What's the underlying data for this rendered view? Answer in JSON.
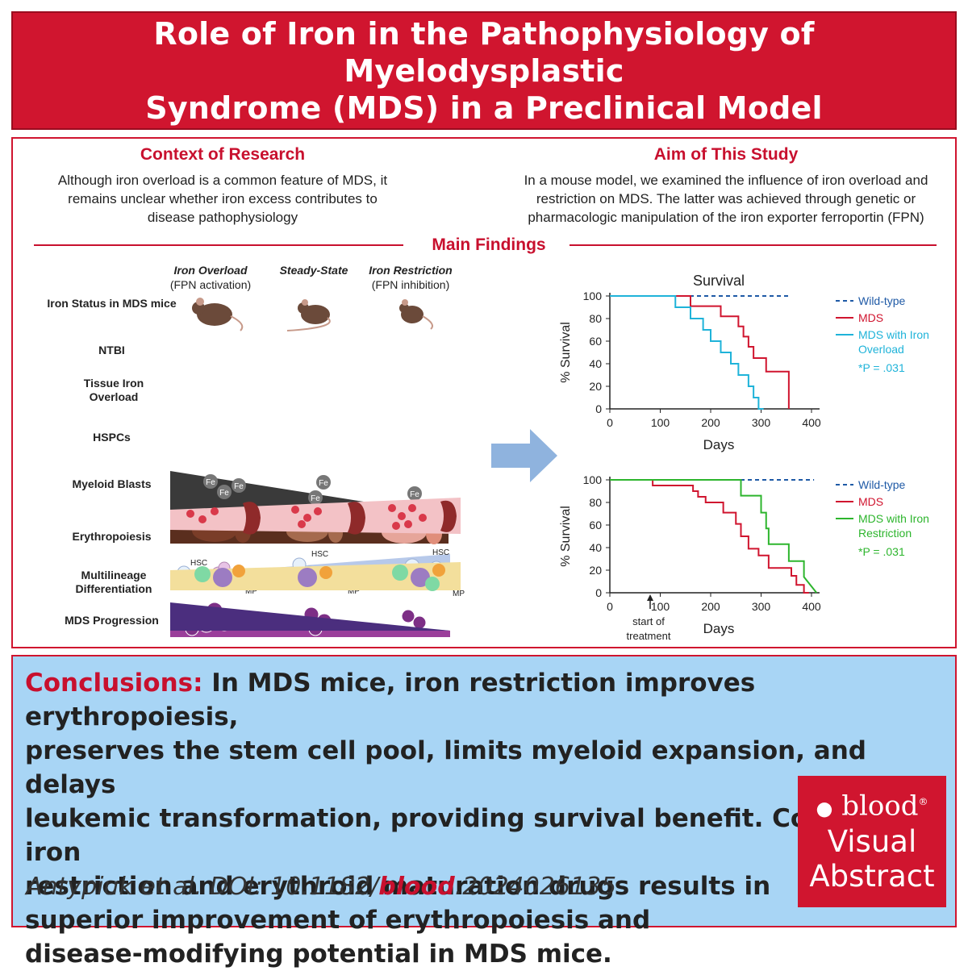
{
  "title": {
    "line1": "Role of Iron in the Pathophysiology of Myelodysplastic",
    "line2": "Syndrome (MDS) in a Preclinical Model"
  },
  "context": {
    "heading": "Context of Research",
    "lines": [
      "Although iron overload is a common feature of MDS, it",
      "remains unclear whether iron excess contributes to",
      "disease pathophysiology"
    ]
  },
  "aim": {
    "heading": "Aim of This Study",
    "lines": [
      "In a mouse model, we examined the influence of iron overload and",
      "restriction on MDS. The latter was achieved through genetic or",
      "pharmacologic manipulation of the iron exporter ferroportin (FPN)"
    ]
  },
  "main_findings": {
    "heading": "Main Findings",
    "columns": [
      {
        "title": "Iron Overload",
        "subtitle": "(FPN activation)"
      },
      {
        "title": "Steady-State",
        "subtitle": ""
      },
      {
        "title": "Iron Restriction",
        "subtitle": "(FPN inhibition)"
      }
    ],
    "rows": [
      "Iron Status in MDS mice",
      "NTBI",
      "Tissue Iron Overload",
      "HSPCs",
      "Myeloid Blasts",
      "Erythropoiesis",
      "Multilineage Differentiation",
      "MDS Progression"
    ],
    "fe_label": "Fe",
    "hsc_label": "HSC",
    "mp_label": "MP",
    "colors": {
      "ntbi": "#3a3a3a",
      "tissue": "#5a2e1e",
      "hspc": "#b7c9ea",
      "blasts": "#9a3e9a",
      "erythro": "#f3c2c6",
      "multi": "#f3df9c",
      "progression": "#4b2e7e",
      "arrow": "#8fb3de"
    }
  },
  "chart_data": [
    {
      "type": "line",
      "title": "Survival",
      "xlabel": "Days",
      "ylabel": "% Survival",
      "xlim": [
        0,
        400
      ],
      "ylim": [
        0,
        100
      ],
      "xticks": [
        0,
        100,
        200,
        300,
        400
      ],
      "yticks": [
        0,
        20,
        40,
        60,
        80,
        100
      ],
      "series": [
        {
          "name": "Wild-type",
          "color": "#1f5aa6",
          "dashed": true,
          "x": [
            0,
            355
          ],
          "y": [
            100,
            100
          ]
        },
        {
          "name": "MDS",
          "color": "#d0152f",
          "step": true,
          "x": [
            0,
            160,
            160,
            220,
            220,
            255,
            255,
            265,
            265,
            275,
            275,
            285,
            285,
            310,
            310,
            355,
            355
          ],
          "y": [
            100,
            100,
            91,
            91,
            82,
            82,
            73,
            73,
            64,
            64,
            55,
            55,
            45,
            45,
            33,
            33,
            0
          ]
        },
        {
          "name": "MDS with Iron Overload",
          "color": "#1fb3d9",
          "step": true,
          "x": [
            0,
            130,
            130,
            160,
            160,
            185,
            185,
            200,
            200,
            220,
            220,
            240,
            240,
            255,
            255,
            275,
            275,
            285,
            285,
            295,
            295,
            305
          ],
          "y": [
            100,
            100,
            90,
            90,
            80,
            80,
            70,
            70,
            60,
            60,
            50,
            50,
            40,
            40,
            30,
            30,
            20,
            20,
            10,
            10,
            0,
            0
          ]
        }
      ],
      "legend": [
        "Wild-type",
        "MDS",
        "MDS with Iron Overload"
      ],
      "annotation": "*P = .031"
    },
    {
      "type": "line",
      "xlabel": "Days",
      "ylabel": "% Survival",
      "xlim": [
        0,
        400
      ],
      "ylim": [
        0,
        100
      ],
      "xticks": [
        0,
        100,
        200,
        300,
        400
      ],
      "yticks": [
        0,
        20,
        40,
        60,
        80,
        100
      ],
      "series": [
        {
          "name": "Wild-type",
          "color": "#1f5aa6",
          "dashed": true,
          "x": [
            0,
            405
          ],
          "y": [
            100,
            100
          ]
        },
        {
          "name": "MDS",
          "color": "#d0152f",
          "step": true,
          "x": [
            0,
            85,
            85,
            165,
            165,
            175,
            175,
            190,
            190,
            225,
            225,
            250,
            250,
            260,
            260,
            275,
            275,
            295,
            295,
            315,
            315,
            360,
            360,
            370,
            370,
            385,
            385,
            395
          ],
          "y": [
            100,
            100,
            95,
            95,
            90,
            90,
            85,
            85,
            80,
            80,
            71,
            71,
            61,
            61,
            50,
            50,
            39,
            39,
            33,
            33,
            22,
            22,
            15,
            15,
            7,
            7,
            0,
            0
          ]
        },
        {
          "name": "MDS with Iron Restriction",
          "color": "#2db52d",
          "step": true,
          "x": [
            0,
            260,
            260,
            300,
            300,
            310,
            310,
            315,
            315,
            355,
            355,
            385,
            385,
            410
          ],
          "y": [
            100,
            100,
            86,
            86,
            71,
            71,
            57,
            57,
            43,
            43,
            28,
            28,
            14,
            0
          ]
        }
      ],
      "legend": [
        "Wild-type",
        "MDS",
        "MDS with Iron Restriction"
      ],
      "annotation": "*P = .031",
      "treatment_label": [
        "start of",
        "treatment"
      ],
      "treatment_day": 80
    }
  ],
  "conclusions": {
    "lead": "Conclusions:",
    "text": "In MDS mice, iron restriction improves erythropoiesis,",
    "line2": "preserves the stem cell pool, limits myeloid expansion, and delays",
    "line3": "leukemic transformation, providing survival benefit. Combining iron",
    "line4": "restriction and erythroid maturation drugs results in",
    "line5": "superior improvement of erythropoiesis and",
    "line6": "disease-modifying potential in MDS mice."
  },
  "citation": {
    "authors": "Antypiuk et al. DOI: 10.1182/",
    "journal": "blood",
    "doi_tail": ".2024026135"
  },
  "badge": {
    "brand": "blood",
    "line1": "Visual",
    "line2": "Abstract"
  }
}
